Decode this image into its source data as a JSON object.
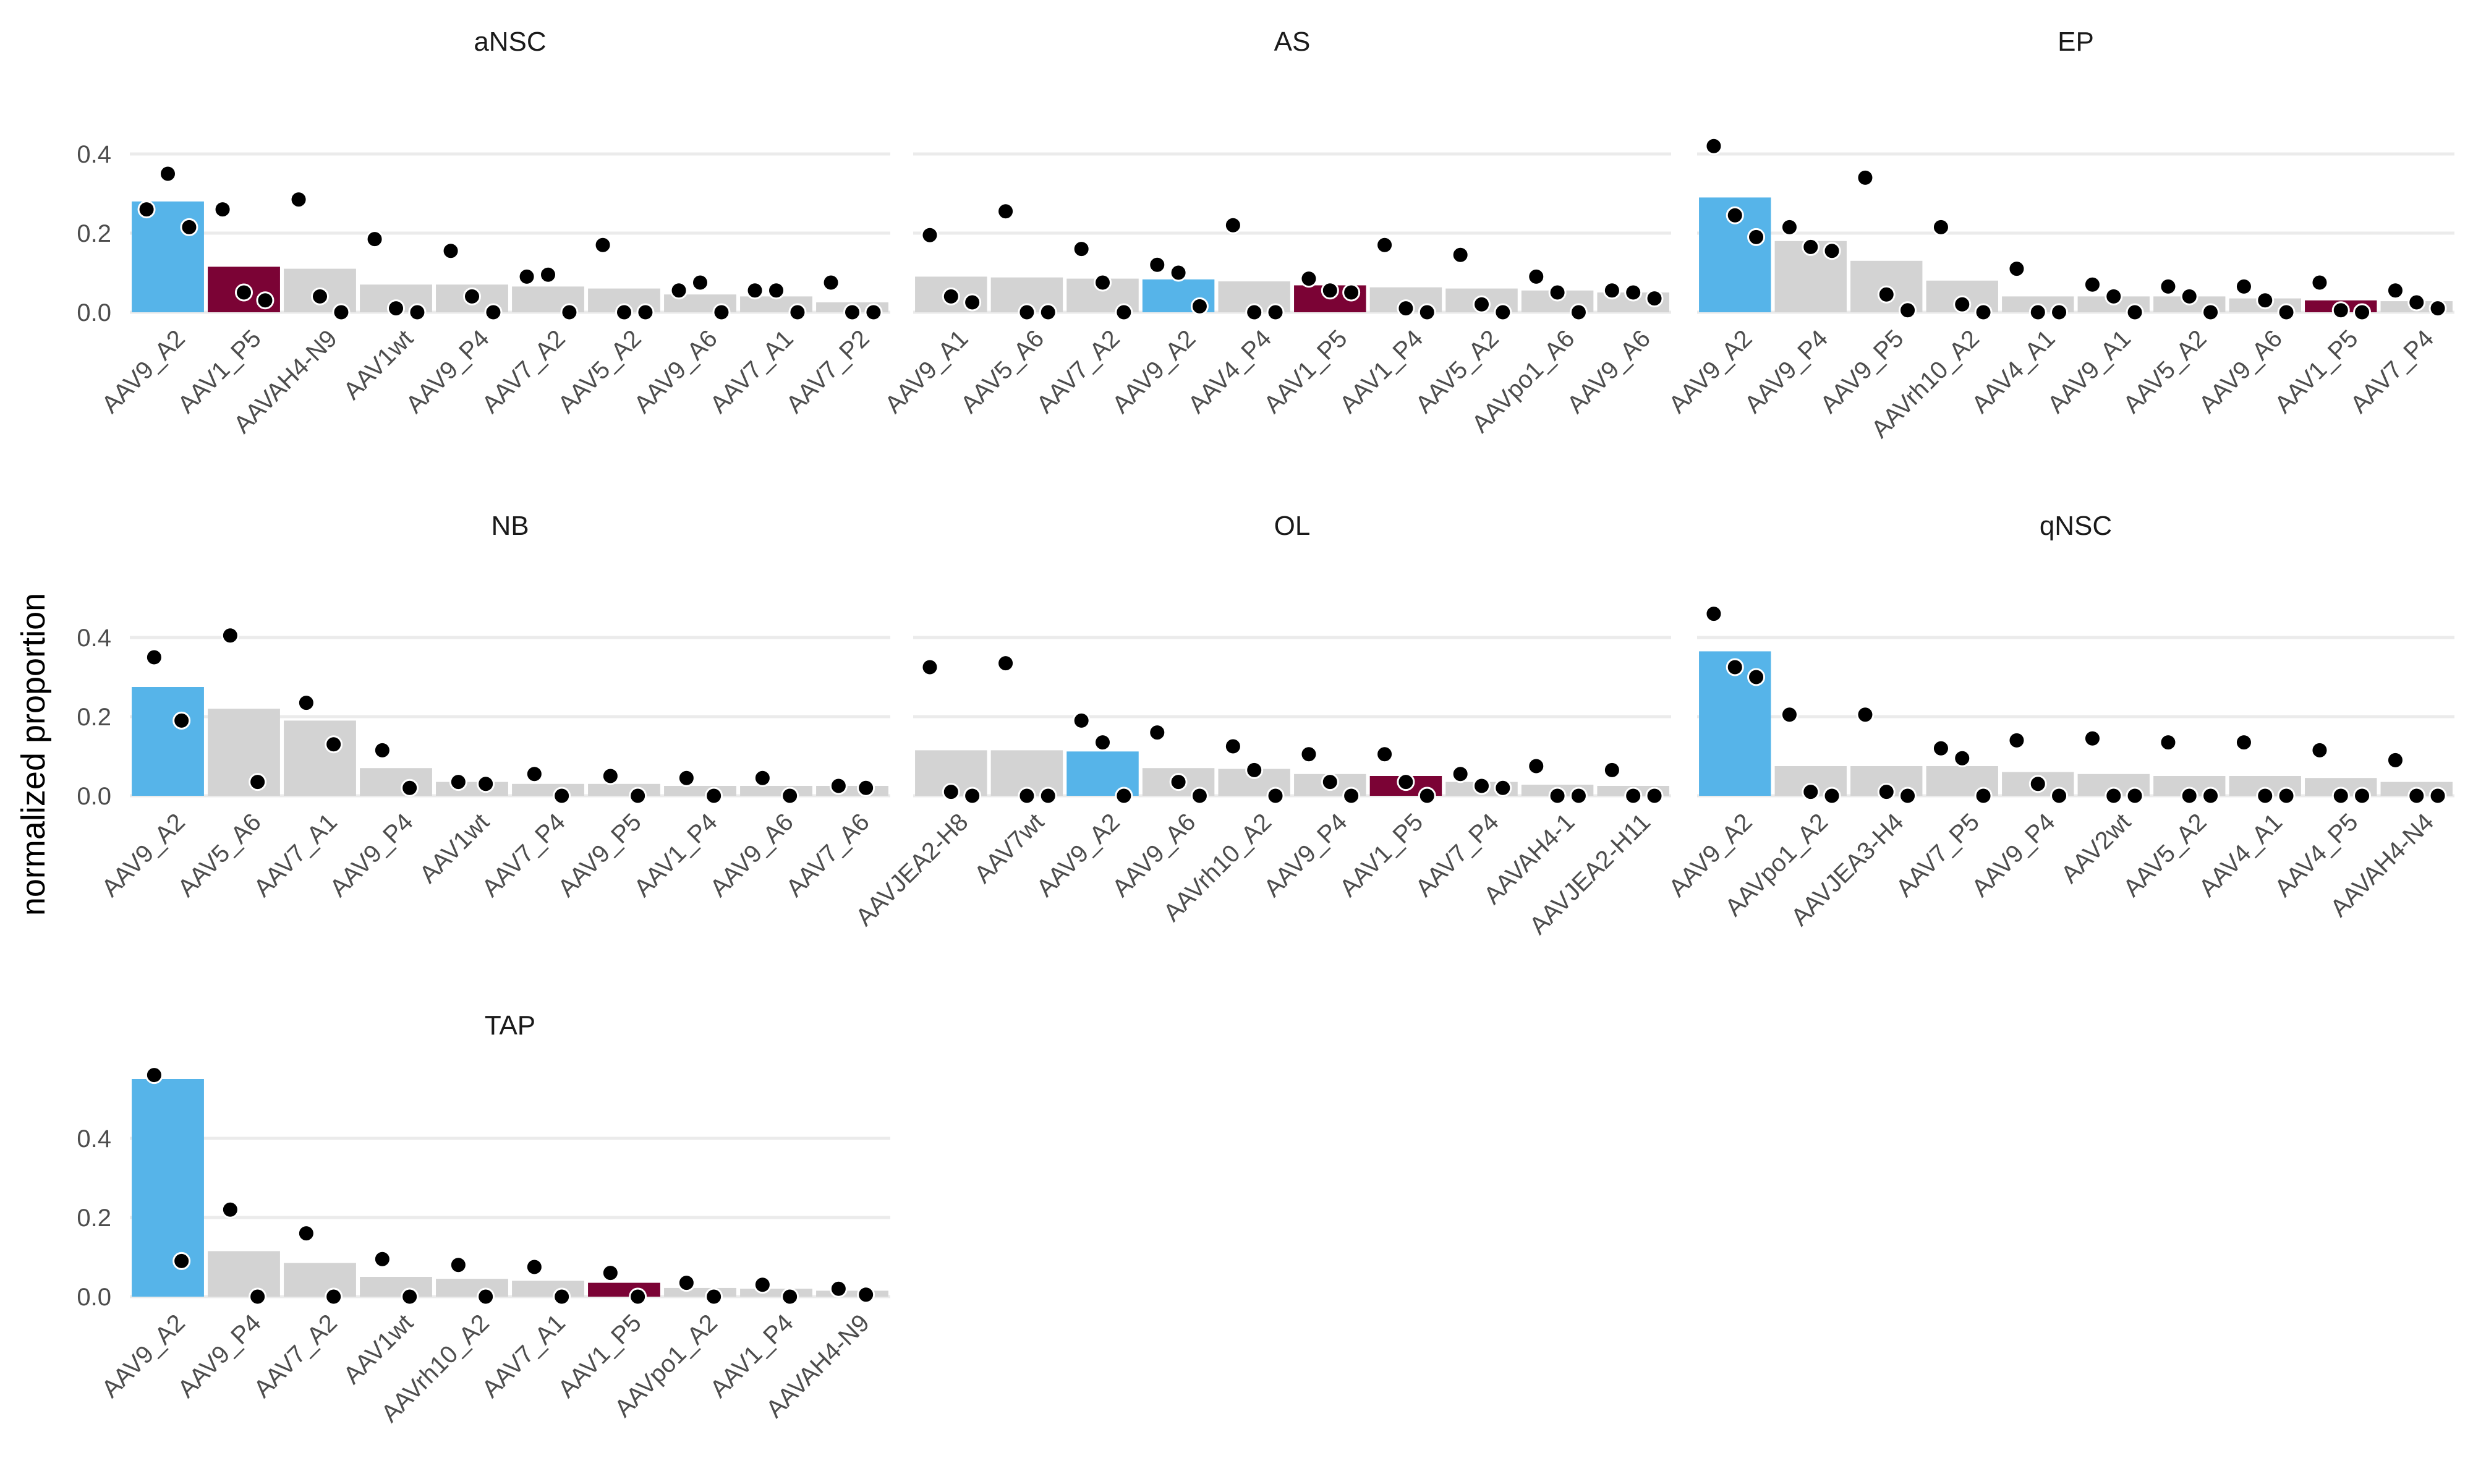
{
  "colors": {
    "highlight_blue": "#56B4E9",
    "highlight_red": "#7B0335",
    "default_bar": "#D3D3D3",
    "point": "#000000",
    "grid": "#EBEBEB",
    "text": "#4D4D4D"
  },
  "chart_data": {
    "type": "bar",
    "ylabel": "normalized proportion",
    "yticks": [
      "0.0",
      "0.2",
      "0.4"
    ],
    "grid": true,
    "layout": "faceted 3 columns",
    "panels": [
      {
        "title": "aNSC",
        "ylim": [
          0,
          0.42
        ],
        "categories": [
          "AAV9_A2",
          "AAV1_P5",
          "AAVAH4-N9",
          "AAV1wt",
          "AAV9_P4",
          "AAV7_A2",
          "AAV5_A2",
          "AAV9_A6",
          "AAV7_A1",
          "AAV7_P2"
        ],
        "values": [
          0.28,
          0.115,
          0.11,
          0.07,
          0.07,
          0.065,
          0.06,
          0.045,
          0.04,
          0.025
        ],
        "highlight": [
          "blue",
          "red",
          "",
          "",
          "",
          "",
          "",
          "",
          "",
          ""
        ],
        "points": [
          [
            0.26,
            0.35,
            0.215
          ],
          [
            0.26,
            0.05,
            0.03
          ],
          [
            0.285,
            0.04,
            0.0
          ],
          [
            0.185,
            0.01,
            0.0
          ],
          [
            0.155,
            0.04,
            0.0
          ],
          [
            0.09,
            0.095,
            0.0
          ],
          [
            0.17,
            0.0,
            0.0
          ],
          [
            0.055,
            0.075,
            0.0
          ],
          [
            0.055,
            0.055,
            0.0
          ],
          [
            0.075,
            0.0,
            0.0
          ]
        ]
      },
      {
        "title": "AS",
        "ylim": [
          0,
          0.42
        ],
        "categories": [
          "AAV9_A1",
          "AAV5_A6",
          "AAV7_A2",
          "AAV9_A2",
          "AAV4_P4",
          "AAV1_P5",
          "AAV1_P4",
          "AAV5_A2",
          "AAVpo1_A6",
          "AAV9_A6"
        ],
        "values": [
          0.09,
          0.088,
          0.085,
          0.083,
          0.078,
          0.068,
          0.063,
          0.06,
          0.055,
          0.05
        ],
        "highlight": [
          "",
          "",
          "",
          "blue",
          "",
          "red",
          "",
          "",
          "",
          ""
        ],
        "points": [
          [
            0.195,
            0.04,
            0.025
          ],
          [
            0.255,
            0.0,
            0.0
          ],
          [
            0.16,
            0.075,
            0.0
          ],
          [
            0.12,
            0.1,
            0.015
          ],
          [
            0.22,
            0.0,
            0.0
          ],
          [
            0.085,
            0.055,
            0.05
          ],
          [
            0.17,
            0.01,
            0.0
          ],
          [
            0.145,
            0.02,
            0.0
          ],
          [
            0.09,
            0.05,
            0.0
          ],
          [
            0.055,
            0.05,
            0.035
          ]
        ]
      },
      {
        "title": "EP",
        "ylim": [
          0,
          0.42
        ],
        "categories": [
          "AAV9_A2",
          "AAV9_P4",
          "AAV9_P5",
          "AAVrh10_A2",
          "AAV4_A1",
          "AAV9_A1",
          "AAV5_A2",
          "AAV9_A6",
          "AAV1_P5",
          "AAV7_P4"
        ],
        "values": [
          0.29,
          0.18,
          0.13,
          0.08,
          0.04,
          0.04,
          0.04,
          0.035,
          0.03,
          0.028
        ],
        "highlight": [
          "blue",
          "",
          "",
          "",
          "",
          "",
          "",
          "",
          "red",
          ""
        ],
        "points": [
          [
            0.42,
            0.245,
            0.19
          ],
          [
            0.215,
            0.165,
            0.155
          ],
          [
            0.34,
            0.045,
            0.005
          ],
          [
            0.215,
            0.02,
            0.0
          ],
          [
            0.11,
            0.0,
            0.0
          ],
          [
            0.07,
            0.04,
            0.0
          ],
          [
            0.065,
            0.04,
            0.0
          ],
          [
            0.065,
            0.03,
            0.0
          ],
          [
            0.075,
            0.005,
            0.0
          ],
          [
            0.055,
            0.025,
            0.01
          ]
        ]
      },
      {
        "title": "NB",
        "ylim": [
          0,
          0.42
        ],
        "categories": [
          "AAV9_A2",
          "AAV5_A6",
          "AAV7_A1",
          "AAV9_P4",
          "AAV1wt",
          "AAV7_P4",
          "AAV9_P5",
          "AAV1_P4",
          "AAV9_A6",
          "AAV7_A6"
        ],
        "values": [
          0.275,
          0.22,
          0.19,
          0.07,
          0.035,
          0.03,
          0.03,
          0.025,
          0.025,
          0.025
        ],
        "highlight": [
          "blue",
          "",
          "",
          "",
          "",
          "",
          "",
          "",
          "",
          ""
        ],
        "points": [
          [
            0.35,
            0.19
          ],
          [
            0.405,
            0.035
          ],
          [
            0.235,
            0.13
          ],
          [
            0.115,
            0.02
          ],
          [
            0.035,
            0.03
          ],
          [
            0.055,
            0.0
          ],
          [
            0.05,
            0.0
          ],
          [
            0.045,
            0.0
          ],
          [
            0.045,
            0.0
          ],
          [
            0.025,
            0.02
          ]
        ]
      },
      {
        "title": "OL",
        "ylim": [
          0,
          0.42
        ],
        "categories": [
          "AAVJEA2-H8",
          "AAV7wt",
          "AAV9_A2",
          "AAV9_A6",
          "AAVrh10_A2",
          "AAV9_P4",
          "AAV1_P5",
          "AAV7_P4",
          "AAVAH4-1",
          "AAVJEA2-H11"
        ],
        "values": [
          0.115,
          0.115,
          0.112,
          0.07,
          0.068,
          0.055,
          0.05,
          0.035,
          0.028,
          0.025
        ],
        "highlight": [
          "",
          "",
          "blue",
          "",
          "",
          "",
          "red",
          "",
          "",
          ""
        ],
        "points": [
          [
            0.325,
            0.01,
            0.0
          ],
          [
            0.335,
            0.0,
            0.0
          ],
          [
            0.19,
            0.135,
            0.0
          ],
          [
            0.16,
            0.035,
            0.0
          ],
          [
            0.125,
            0.065,
            0.0
          ],
          [
            0.105,
            0.035,
            0.0
          ],
          [
            0.105,
            0.035,
            0.0
          ],
          [
            0.055,
            0.025,
            0.02
          ],
          [
            0.075,
            0.0,
            0.0
          ],
          [
            0.065,
            0.0,
            0.0
          ]
        ]
      },
      {
        "title": "qNSC",
        "ylim": [
          0,
          0.42
        ],
        "categories": [
          "AAV9_A2",
          "AAVpo1_A2",
          "AAVJEA3-H4",
          "AAV7_P5",
          "AAV9_P4",
          "AAV2wt",
          "AAV5_A2",
          "AAV4_A1",
          "AAV4_P5",
          "AAVAH4-N4"
        ],
        "values": [
          0.365,
          0.075,
          0.075,
          0.075,
          0.06,
          0.055,
          0.05,
          0.05,
          0.045,
          0.035
        ],
        "highlight": [
          "blue",
          "",
          "",
          "",
          "",
          "",
          "",
          "",
          "",
          ""
        ],
        "points": [
          [
            0.46,
            0.325,
            0.3
          ],
          [
            0.205,
            0.01,
            0.0
          ],
          [
            0.205,
            0.01,
            0.0
          ],
          [
            0.12,
            0.095,
            0.0
          ],
          [
            0.14,
            0.03,
            0.0
          ],
          [
            0.145,
            0.0,
            0.0
          ],
          [
            0.135,
            0.0,
            0.0
          ],
          [
            0.135,
            0.0,
            0.0
          ],
          [
            0.115,
            0.0,
            0.0
          ],
          [
            0.09,
            0.0,
            0.0
          ]
        ]
      },
      {
        "title": "TAP",
        "ylim": [
          0,
          0.56
        ],
        "categories": [
          "AAV9_A2",
          "AAV9_P4",
          "AAV7_A2",
          "AAV1wt",
          "AAVrh10_A2",
          "AAV7_A1",
          "AAV1_P5",
          "AAVpo1_A2",
          "AAV1_P4",
          "AAVAH4-N9"
        ],
        "values": [
          0.55,
          0.115,
          0.085,
          0.05,
          0.045,
          0.04,
          0.035,
          0.022,
          0.02,
          0.015
        ],
        "highlight": [
          "blue",
          "",
          "",
          "",
          "",
          "",
          "red",
          "",
          "",
          ""
        ],
        "points": [
          [
            0.56,
            0.09
          ],
          [
            0.22,
            0.0
          ],
          [
            0.16,
            0.0
          ],
          [
            0.095,
            0.0
          ],
          [
            0.08,
            0.0
          ],
          [
            0.075,
            0.0
          ],
          [
            0.06,
            0.0
          ],
          [
            0.035,
            0.0
          ],
          [
            0.03,
            0.0
          ],
          [
            0.02,
            0.005
          ]
        ]
      }
    ]
  }
}
